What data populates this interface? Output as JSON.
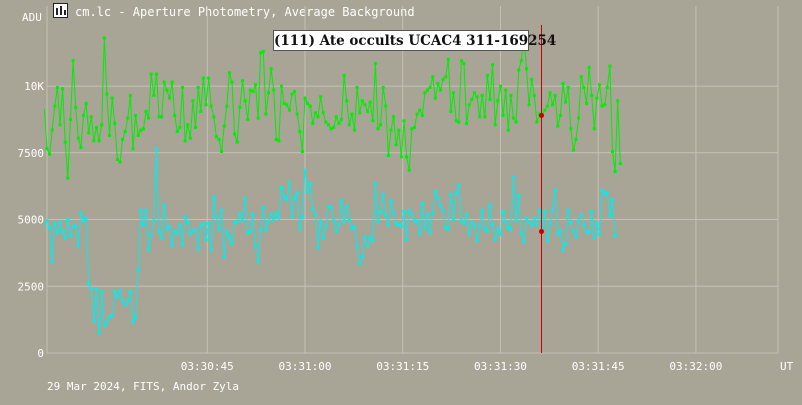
{
  "window": {
    "title": "cm.lc - Aperture Photometry, Average Background",
    "icon": "chart-icon"
  },
  "footer": "29 Mar 2024, FITS, Andor Zyla",
  "colors": {
    "background": "#a8a496",
    "grid": "#c4c1b6",
    "series_target": "#00ee00",
    "series_comparison": "#00eeee",
    "cursor": "#cc0000"
  },
  "chart_data": {
    "type": "line",
    "title": "(111) Ate occults UCAC4 311-169254",
    "ylabel": "ADU",
    "xlabel": "UT",
    "ylim": [
      0,
      13000
    ],
    "xlim": [
      "03:30:20.4",
      "03:32:12.6"
    ],
    "x_ticks": [
      "03:30:45",
      "03:31:00",
      "03:31:15",
      "03:31:30",
      "03:31:45",
      "03:32:00"
    ],
    "y_ticks": [
      "0",
      "2500",
      "5000",
      "7500",
      "10K"
    ],
    "grid": true,
    "cursor_time": "03:31:36.3",
    "sample_interval_s": 0.4,
    "first_sample_time": "03:30:20.0",
    "series": [
      {
        "name": "",
        "values": [
          9150,
          7650,
          7450,
          8350,
          9250,
          9950,
          8550,
          9900,
          7900,
          6550,
          8750,
          10950,
          9200,
          8050,
          7700,
          8900,
          9350,
          8250,
          8850,
          7950,
          8450,
          7950,
          8550,
          11800,
          9700,
          8150,
          9550,
          8600,
          7250,
          7150,
          8000,
          8300,
          8800,
          9650,
          7650,
          8900,
          8150,
          8350,
          8400,
          9050,
          8800,
          10450,
          9650,
          10450,
          8850,
          8850,
          10150,
          9850,
          9550,
          10150,
          8900,
          8300,
          8450,
          9950,
          7950,
          8550,
          8050,
          9450,
          8450,
          9950,
          9050,
          10300,
          9300,
          10300,
          9250,
          8850,
          8100,
          8000,
          7550,
          8500,
          9250,
          10500,
          10150,
          8200,
          7900,
          9200,
          10200,
          9450,
          8750,
          9850,
          9800,
          10050,
          8800,
          11250,
          11300,
          8950,
          9750,
          10650,
          9850,
          8000,
          7950,
          10000,
          9350,
          9300,
          9100,
          9700,
          9800,
          8950,
          8300,
          7550,
          9550,
          9350,
          9250,
          8600,
          9000,
          8850,
          9600,
          9000,
          8650,
          8550,
          8400,
          8450,
          8850,
          8600,
          8750,
          10400,
          9450,
          8550,
          8950,
          8350,
          9950,
          9000,
          9450,
          9300,
          9050,
          9400,
          8700,
          10850,
          8400,
          8550,
          9950,
          9250,
          7400,
          8350,
          8850,
          7800,
          8350,
          7350,
          8700,
          7350,
          6850,
          8400,
          8450,
          8950,
          9100,
          8900,
          9750,
          9850,
          9950,
          10350,
          9550,
          10100,
          9850,
          10250,
          10350,
          11000,
          9050,
          9750,
          8700,
          8650,
          10950,
          10850,
          8600,
          9300,
          9500,
          9750,
          9600,
          8850,
          9650,
          8850,
          10400,
          9500,
          10800,
          8550,
          9450,
          10000,
          8900,
          9850,
          8350,
          9650,
          8800,
          8650,
          10600,
          10950,
          11900,
          10650,
          9300,
          10250,
          9650,
          8650,
          8950,
          8900,
          9100,
          9250,
          9750,
          9300,
          9650,
          8500,
          8900,
          10100,
          9400,
          9950,
          8400,
          7600,
          8000,
          8800,
          10350,
          9950,
          9350,
          10700,
          9650,
          8400,
          9550,
          10050,
          9250,
          9300,
          9950,
          10750,
          7550,
          6800,
          9450,
          7100
        ]
      },
      {
        "name": "",
        "values": [
          4700,
          4950,
          4700,
          3400,
          4850,
          4500,
          4900,
          4550,
          4300,
          5000,
          4400,
          4750,
          4750,
          4000,
          5250,
          4950,
          5050,
          2600,
          2400,
          1200,
          2400,
          750,
          2300,
          1000,
          1150,
          1350,
          1400,
          2300,
          2100,
          2350,
          1950,
          1800,
          1950,
          2300,
          1150,
          1350,
          3100,
          5350,
          4800,
          5350,
          3850,
          4450,
          4950,
          7650,
          4550,
          4300,
          5550,
          4650,
          4750,
          4000,
          4550,
          4500,
          4800,
          4050,
          5100,
          4900,
          4450,
          4600,
          4600,
          3900,
          4750,
          4850,
          4250,
          4850,
          3850,
          5850,
          5100,
          4600,
          5350,
          3600,
          4550,
          4350,
          4100,
          4900,
          4900,
          5200,
          4950,
          5800,
          4500,
          4550,
          5200,
          4000,
          3400,
          4600,
          5450,
          4600,
          4900,
          5200,
          5000,
          5250,
          5050,
          6200,
          5850,
          5750,
          6400,
          5100,
          5800,
          6000,
          4650,
          5100,
          6850,
          6050,
          6350,
          5400,
          5200,
          3950,
          4950,
          4300,
          4750,
          5500,
          5450,
          4950,
          4550,
          4800,
          5700,
          4900,
          5500,
          5000,
          4650,
          4750,
          4000,
          3350,
          3600,
          4350,
          4000,
          4350,
          4200,
          6350,
          4900,
          5300,
          5950,
          5150,
          4800,
          5700,
          5250,
          4850,
          4800,
          4750,
          5300,
          4250,
          5350,
          5200,
          4950,
          4950,
          4450,
          5600,
          4650,
          5200,
          4500,
          5250,
          6050,
          5800,
          5550,
          5350,
          4700,
          4650,
          5950,
          5000,
          6000,
          6300,
          4950,
          4850,
          5200,
          4450,
          4900,
          4800,
          4200,
          4750,
          5350,
          4650,
          4550,
          5550,
          4800,
          4250,
          4650,
          4450,
          5300,
          4900,
          4700,
          4600,
          6600,
          4950,
          5900,
          4450,
          4150,
          5050,
          4900,
          4750,
          5050,
          4800,
          5350,
          4550,
          5300,
          4200,
          4850,
          5350,
          6100,
          4450,
          4600,
          3850,
          4100,
          5350,
          4900,
          4550,
          4350,
          4950,
          5200,
          4800,
          4550,
          4500,
          5300,
          4300,
          4850,
          4450,
          6100,
          5950,
          6000,
          5150,
          5750,
          4400
        ]
      }
    ]
  }
}
